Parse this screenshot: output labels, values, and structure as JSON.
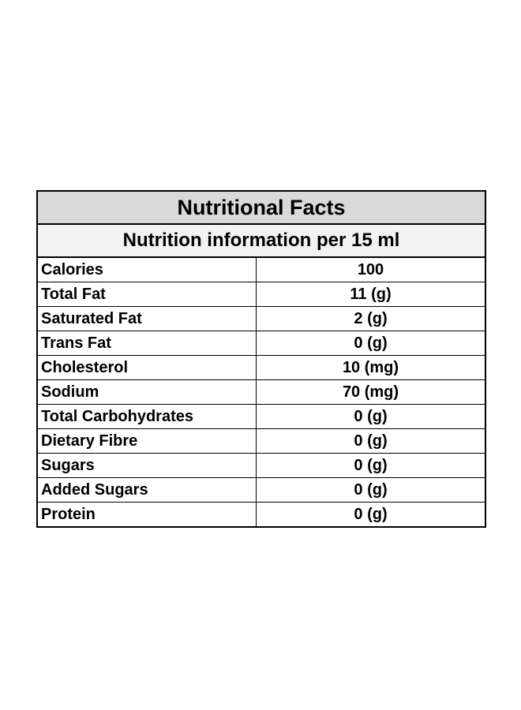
{
  "table": {
    "title": "Nutritional Facts",
    "subtitle": "Nutrition information per 15 ml",
    "rows": [
      [
        "Calories",
        "100"
      ],
      [
        "Total Fat",
        "11 (g)"
      ],
      [
        "Saturated Fat",
        "2 (g)"
      ],
      [
        "Trans Fat",
        "0 (g)"
      ],
      [
        "Cholesterol",
        "10 (mg)"
      ],
      [
        "Sodium",
        "70 (mg)"
      ],
      [
        "Total Carbohydrates",
        "0 (g)"
      ],
      [
        "Dietary Fibre",
        "0 (g)"
      ],
      [
        "Sugars",
        "0 (g)"
      ],
      [
        "Added Sugars",
        "0 (g)"
      ],
      [
        "Protein",
        "0 (g)"
      ]
    ]
  }
}
